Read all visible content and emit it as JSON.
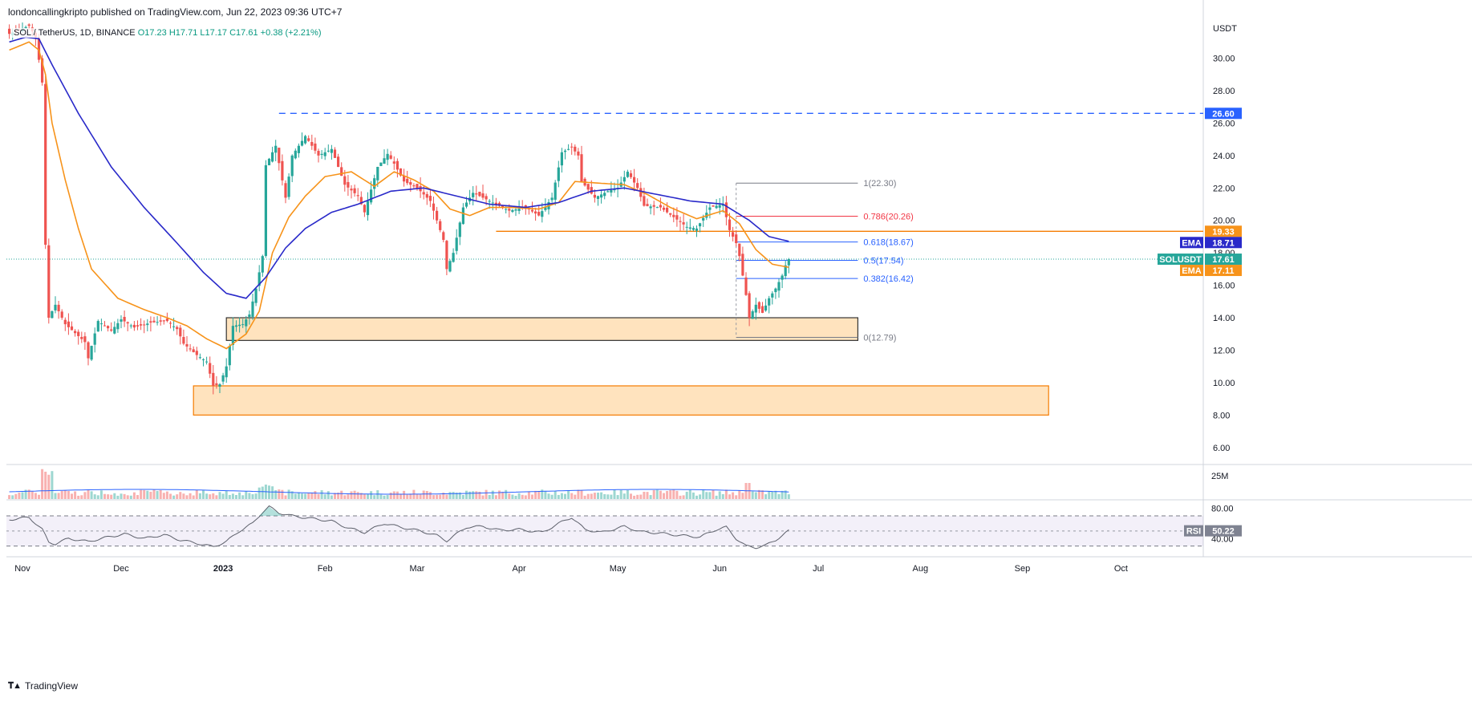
{
  "publisher": "londoncallingkripto published on TradingView.com, Jun 22, 2023 09:36 UTC+7",
  "legend": {
    "symbol": "SOL / TetherUS, 1D, BINANCE",
    "open": "O17.23",
    "high": "H17.71",
    "low": "L17.17",
    "close": "C17.61",
    "change": "+0.38 (+2.21%)"
  },
  "brand": "TradingView",
  "colors": {
    "up": "#26a69a",
    "down": "#ef5350",
    "ema_fast": "#f7931a",
    "ema_slow": "#2929c9",
    "level": "#2962ff",
    "rsi_band": "#7e57c2",
    "zone_fill": "#ffd9a8",
    "zone_border": "#f57c00"
  },
  "chart_data": {
    "type": "candlestick",
    "symbol": "SOLUSDT",
    "price_axis": {
      "unit_label": "USDT",
      "ticks": [
        "6.00",
        "8.00",
        "10.00",
        "12.00",
        "14.00",
        "16.00",
        "18.00",
        "20.00",
        "22.00",
        "24.00",
        "26.00",
        "28.00",
        "30.00"
      ],
      "range": [
        5.0,
        32.5
      ]
    },
    "time_axis": {
      "labels": [
        {
          "text": "Nov",
          "date": "2022-11-01",
          "bold": false
        },
        {
          "text": "Dec",
          "date": "2022-12-01",
          "bold": false
        },
        {
          "text": "2023",
          "date": "2023-01-01",
          "bold": true
        },
        {
          "text": "Feb",
          "date": "2023-02-01",
          "bold": false
        },
        {
          "text": "Mar",
          "date": "2023-03-01",
          "bold": false
        },
        {
          "text": "Apr",
          "date": "2023-04-01",
          "bold": false
        },
        {
          "text": "May",
          "date": "2023-05-01",
          "bold": false
        },
        {
          "text": "Jun",
          "date": "2023-06-01",
          "bold": false
        },
        {
          "text": "Jul",
          "date": "2023-07-01",
          "bold": false
        },
        {
          "text": "Aug",
          "date": "2023-08-01",
          "bold": false
        },
        {
          "text": "Sep",
          "date": "2023-09-01",
          "bold": false
        },
        {
          "text": "Oct",
          "date": "2023-10-01",
          "bold": false
        }
      ]
    },
    "price_anchors": [
      [
        "2022-10-28",
        31.5
      ],
      [
        "2022-11-03",
        32.0
      ],
      [
        "2022-11-05",
        31.3
      ],
      [
        "2022-11-07",
        28.5
      ],
      [
        "2022-11-08",
        18.5
      ],
      [
        "2022-11-09",
        14.0
      ],
      [
        "2022-11-11",
        14.8
      ],
      [
        "2022-11-14",
        13.6
      ],
      [
        "2022-11-20",
        12.5
      ],
      [
        "2022-11-21",
        11.5
      ],
      [
        "2022-11-24",
        13.8
      ],
      [
        "2022-11-28",
        13.2
      ],
      [
        "2022-12-01",
        13.9
      ],
      [
        "2022-12-05",
        13.4
      ],
      [
        "2022-12-10",
        13.7
      ],
      [
        "2022-12-15",
        13.8
      ],
      [
        "2022-12-18",
        13.3
      ],
      [
        "2022-12-20",
        12.4
      ],
      [
        "2022-12-24",
        11.7
      ],
      [
        "2022-12-27",
        11.3
      ],
      [
        "2022-12-29",
        9.8
      ],
      [
        "2022-12-31",
        9.9
      ],
      [
        "2023-01-02",
        11.0
      ],
      [
        "2023-01-04",
        13.5
      ],
      [
        "2023-01-07",
        13.6
      ],
      [
        "2023-01-09",
        14.2
      ],
      [
        "2023-01-11",
        15.8
      ],
      [
        "2023-01-13",
        17.8
      ],
      [
        "2023-01-14",
        23.4
      ],
      [
        "2023-01-17",
        24.6
      ],
      [
        "2023-01-20",
        21.4
      ],
      [
        "2023-01-22",
        24.0
      ],
      [
        "2023-01-26",
        25.2
      ],
      [
        "2023-01-30",
        24.0
      ],
      [
        "2023-02-03",
        24.4
      ],
      [
        "2023-02-07",
        22.2
      ],
      [
        "2023-02-11",
        21.5
      ],
      [
        "2023-02-13",
        20.5
      ],
      [
        "2023-02-17",
        23.3
      ],
      [
        "2023-02-20",
        24.1
      ],
      [
        "2023-02-22",
        23.5
      ],
      [
        "2023-02-25",
        22.4
      ],
      [
        "2023-03-01",
        22.0
      ],
      [
        "2023-03-05",
        21.2
      ],
      [
        "2023-03-09",
        18.8
      ],
      [
        "2023-03-10",
        17.0
      ],
      [
        "2023-03-12",
        18.0
      ],
      [
        "2023-03-15",
        20.8
      ],
      [
        "2023-03-18",
        21.7
      ],
      [
        "2023-03-20",
        21.5
      ],
      [
        "2023-03-25",
        21.0
      ],
      [
        "2023-03-29",
        20.6
      ],
      [
        "2023-04-03",
        20.8
      ],
      [
        "2023-04-07",
        20.3
      ],
      [
        "2023-04-11",
        21.4
      ],
      [
        "2023-04-14",
        24.2
      ],
      [
        "2023-04-17",
        24.5
      ],
      [
        "2023-04-19",
        24.0
      ],
      [
        "2023-04-20",
        22.4
      ],
      [
        "2023-04-24",
        21.4
      ],
      [
        "2023-04-28",
        21.8
      ],
      [
        "2023-05-01",
        22.0
      ],
      [
        "2023-05-04",
        23.0
      ],
      [
        "2023-05-07",
        22.0
      ],
      [
        "2023-05-09",
        20.9
      ],
      [
        "2023-05-14",
        20.8
      ],
      [
        "2023-05-18",
        20.2
      ],
      [
        "2023-05-22",
        19.6
      ],
      [
        "2023-05-25",
        19.5
      ],
      [
        "2023-05-29",
        20.8
      ],
      [
        "2023-06-02",
        21.0
      ],
      [
        "2023-06-04",
        19.4
      ],
      [
        "2023-06-06",
        18.6
      ],
      [
        "2023-06-07",
        17.8
      ],
      [
        "2023-06-09",
        15.4
      ],
      [
        "2023-06-10",
        14.0
      ],
      [
        "2023-06-12",
        14.8
      ],
      [
        "2023-06-14",
        14.3
      ],
      [
        "2023-06-16",
        15.2
      ],
      [
        "2023-06-18",
        15.8
      ],
      [
        "2023-06-20",
        16.6
      ],
      [
        "2023-06-21",
        17.23
      ],
      [
        "2023-06-22",
        17.61
      ]
    ],
    "ema_fast_anchors": [
      [
        "2022-10-28",
        30.5
      ],
      [
        "2022-11-03",
        31.0
      ],
      [
        "2022-11-06",
        30.5
      ],
      [
        "2022-11-08",
        29.0
      ],
      [
        "2022-11-10",
        26.0
      ],
      [
        "2022-11-14",
        22.5
      ],
      [
        "2022-11-18",
        19.5
      ],
      [
        "2022-11-22",
        17.0
      ],
      [
        "2022-11-30",
        15.2
      ],
      [
        "2022-12-08",
        14.5
      ],
      [
        "2022-12-15",
        14.0
      ],
      [
        "2022-12-21",
        13.5
      ],
      [
        "2022-12-27",
        12.7
      ],
      [
        "2023-01-02",
        12.1
      ],
      [
        "2023-01-08",
        13.0
      ],
      [
        "2023-01-12",
        14.4
      ],
      [
        "2023-01-16",
        18.0
      ],
      [
        "2023-01-21",
        20.2
      ],
      [
        "2023-01-26",
        21.5
      ],
      [
        "2023-02-01",
        22.7
      ],
      [
        "2023-02-09",
        23.0
      ],
      [
        "2023-02-16",
        22.1
      ],
      [
        "2023-02-22",
        23.0
      ],
      [
        "2023-02-28",
        22.5
      ],
      [
        "2023-03-06",
        21.8
      ],
      [
        "2023-03-11",
        20.7
      ],
      [
        "2023-03-17",
        20.3
      ],
      [
        "2023-03-23",
        20.8
      ],
      [
        "2023-03-30",
        20.8
      ],
      [
        "2023-04-07",
        20.7
      ],
      [
        "2023-04-13",
        21.1
      ],
      [
        "2023-04-18",
        22.4
      ],
      [
        "2023-04-25",
        22.3
      ],
      [
        "2023-05-03",
        22.2
      ],
      [
        "2023-05-10",
        21.6
      ],
      [
        "2023-05-17",
        20.8
      ],
      [
        "2023-05-25",
        20.1
      ],
      [
        "2023-06-02",
        20.6
      ],
      [
        "2023-06-07",
        19.8
      ],
      [
        "2023-06-12",
        18.2
      ],
      [
        "2023-06-17",
        17.3
      ],
      [
        "2023-06-22",
        17.11
      ]
    ],
    "ema_slow_anchors": [
      [
        "2022-10-28",
        31.0
      ],
      [
        "2022-11-02",
        31.3
      ],
      [
        "2022-11-06",
        31.2
      ],
      [
        "2022-11-10",
        29.6
      ],
      [
        "2022-11-18",
        26.6
      ],
      [
        "2022-11-28",
        23.3
      ],
      [
        "2022-12-08",
        20.8
      ],
      [
        "2022-12-18",
        18.6
      ],
      [
        "2022-12-26",
        16.8
      ],
      [
        "2023-01-02",
        15.5
      ],
      [
        "2023-01-08",
        15.2
      ],
      [
        "2023-01-14",
        16.5
      ],
      [
        "2023-01-20",
        18.3
      ],
      [
        "2023-01-26",
        19.5
      ],
      [
        "2023-02-03",
        20.5
      ],
      [
        "2023-02-11",
        21.0
      ],
      [
        "2023-02-21",
        21.8
      ],
      [
        "2023-03-03",
        22.0
      ],
      [
        "2023-03-13",
        21.5
      ],
      [
        "2023-03-23",
        21.0
      ],
      [
        "2023-04-03",
        20.8
      ],
      [
        "2023-04-13",
        21.1
      ],
      [
        "2023-04-23",
        21.8
      ],
      [
        "2023-05-03",
        22.0
      ],
      [
        "2023-05-13",
        21.6
      ],
      [
        "2023-05-23",
        21.2
      ],
      [
        "2023-06-02",
        21.0
      ],
      [
        "2023-06-10",
        20.0
      ],
      [
        "2023-06-16",
        19.0
      ],
      [
        "2023-06-22",
        18.71
      ]
    ],
    "levels": [
      {
        "kind": "resistance",
        "price": 26.6,
        "from": "2023-01-18",
        "to": "2023-10-27",
        "label": "26.60",
        "style": "dashed",
        "color": "#2962ff"
      },
      {
        "kind": "resistance",
        "price": 19.33,
        "from": "2023-03-25",
        "to": "2023-10-27",
        "label": "19.33",
        "style": "solid",
        "color": "#f57c00"
      }
    ],
    "zones": [
      {
        "label": "demand-zone-upper",
        "from": "2023-01-02",
        "to": "2023-07-13",
        "low": 12.6,
        "high": 14.0
      },
      {
        "label": "demand-zone-lower",
        "from": "2022-12-23",
        "to": "2023-09-09",
        "low": 8.0,
        "high": 9.8
      }
    ],
    "fibonacci": {
      "from": "2023-06-06",
      "to": "2023-07-13",
      "levels": [
        {
          "ratio": "1",
          "price": 22.3,
          "label": "1(22.30)",
          "color": "#787b86"
        },
        {
          "ratio": "0.786",
          "price": 20.26,
          "label": "0.786(20.26)",
          "color": "#f23645"
        },
        {
          "ratio": "0.618",
          "price": 18.67,
          "label": "0.618(18.67)",
          "color": "#2962ff"
        },
        {
          "ratio": "0.5",
          "price": 17.54,
          "label": "0.5(17.54)",
          "color": "#2962ff"
        },
        {
          "ratio": "0.382",
          "price": 16.42,
          "label": "0.382(16.42)",
          "color": "#2962ff"
        },
        {
          "ratio": "0",
          "price": 12.79,
          "label": "0(12.79)",
          "color": "#787b86"
        }
      ]
    },
    "price_badges": [
      {
        "text": "26.60",
        "price": 26.6,
        "color": "#2962ff",
        "name": ""
      },
      {
        "text": "19.33",
        "price": 19.33,
        "color": "#f7931a",
        "name": ""
      },
      {
        "text": "18.71",
        "price": 18.71,
        "color": "#2929c9",
        "name": "EMA"
      },
      {
        "text": "17.61",
        "price": 17.61,
        "color": "#26a69a",
        "name": "SOLUSDT"
      },
      {
        "text": "17.11",
        "price": 17.11,
        "color": "#f7931a",
        "name": "EMA"
      }
    ],
    "current_price": 17.61,
    "volume": {
      "axis_label": "25M"
    },
    "rsi": {
      "label": "RSI",
      "value": "50.22",
      "upper": 70,
      "lower": 30,
      "ticks": [
        "80.00",
        "40.00"
      ],
      "anchors": [
        [
          "2022-10-28",
          65
        ],
        [
          "2022-11-03",
          68
        ],
        [
          "2022-11-07",
          52
        ],
        [
          "2022-11-09",
          35
        ],
        [
          "2022-11-11",
          33
        ],
        [
          "2022-11-15",
          40
        ],
        [
          "2022-11-21",
          36
        ],
        [
          "2022-11-26",
          41
        ],
        [
          "2022-12-02",
          46
        ],
        [
          "2022-12-08",
          40
        ],
        [
          "2022-12-14",
          45
        ],
        [
          "2022-12-19",
          38
        ],
        [
          "2022-12-25",
          33
        ],
        [
          "2022-12-29",
          29
        ],
        [
          "2023-01-02",
          36
        ],
        [
          "2023-01-06",
          50
        ],
        [
          "2023-01-10",
          60
        ],
        [
          "2023-01-13",
          75
        ],
        [
          "2023-01-15",
          82
        ],
        [
          "2023-01-18",
          74
        ],
        [
          "2023-01-22",
          70
        ],
        [
          "2023-01-27",
          67
        ],
        [
          "2023-02-03",
          63
        ],
        [
          "2023-02-08",
          54
        ],
        [
          "2023-02-13",
          48
        ],
        [
          "2023-02-19",
          60
        ],
        [
          "2023-02-24",
          55
        ],
        [
          "2023-03-02",
          50
        ],
        [
          "2023-03-07",
          44
        ],
        [
          "2023-03-10",
          37
        ],
        [
          "2023-03-16",
          55
        ],
        [
          "2023-03-21",
          56
        ],
        [
          "2023-03-26",
          51
        ],
        [
          "2023-04-01",
          52
        ],
        [
          "2023-04-08",
          48
        ],
        [
          "2023-04-14",
          62
        ],
        [
          "2023-04-17",
          68
        ],
        [
          "2023-04-21",
          52
        ],
        [
          "2023-04-26",
          48
        ],
        [
          "2023-05-03",
          56
        ],
        [
          "2023-05-08",
          49
        ],
        [
          "2023-05-14",
          47
        ],
        [
          "2023-05-20",
          44
        ],
        [
          "2023-05-26",
          42
        ],
        [
          "2023-05-31",
          52
        ],
        [
          "2023-06-03",
          55
        ],
        [
          "2023-06-06",
          40
        ],
        [
          "2023-06-09",
          30
        ],
        [
          "2023-06-12",
          28
        ],
        [
          "2023-06-15",
          31
        ],
        [
          "2023-06-18",
          38
        ],
        [
          "2023-06-22",
          50.22
        ]
      ]
    }
  }
}
